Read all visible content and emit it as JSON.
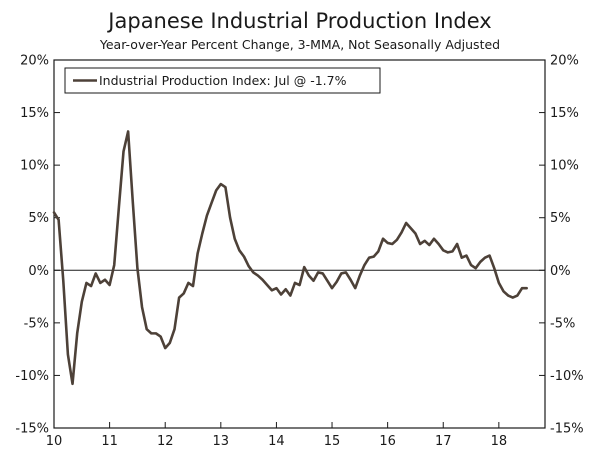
{
  "chart_data": {
    "type": "line",
    "title": "Japanese Industrial Production Index",
    "subtitle": "Year-over-Year Percent Change, 3-MMA, Not Seasonally Adjusted",
    "xlabel": "",
    "ylabel": "",
    "ylim": [
      -15,
      20
    ],
    "xlim": [
      2010.0,
      2018.83
    ],
    "yticks": [
      20,
      15,
      10,
      5,
      0,
      -5,
      -10,
      -15
    ],
    "ytick_labels": [
      "20%",
      "15%",
      "10%",
      "5%",
      "0%",
      "-5%",
      "-10%",
      "-15%"
    ],
    "xticks": [
      2010,
      2011,
      2012,
      2013,
      2014,
      2015,
      2016,
      2017,
      2018
    ],
    "xtick_labels": [
      "10",
      "11",
      "12",
      "13",
      "14",
      "15",
      "16",
      "17",
      "18"
    ],
    "grid": false,
    "zero_line": true,
    "legend": {
      "entries": [
        "Industrial Production Index: Jul @ -1.7%"
      ],
      "placement": "top-left"
    },
    "line_color": "#4d4138",
    "series": [
      {
        "name": "Industrial Production Index",
        "x": [
          2010.0,
          2010.083,
          2010.167,
          2010.25,
          2010.333,
          2010.417,
          2010.5,
          2010.583,
          2010.667,
          2010.75,
          2010.833,
          2010.917,
          2011.0,
          2011.083,
          2011.167,
          2011.25,
          2011.333,
          2011.417,
          2011.5,
          2011.583,
          2011.667,
          2011.75,
          2011.833,
          2011.917,
          2012.0,
          2012.083,
          2012.167,
          2012.25,
          2012.333,
          2012.417,
          2012.5,
          2012.583,
          2012.667,
          2012.75,
          2012.833,
          2012.917,
          2013.0,
          2013.083,
          2013.167,
          2013.25,
          2013.333,
          2013.417,
          2013.5,
          2013.583,
          2013.667,
          2013.75,
          2013.833,
          2013.917,
          2014.0,
          2014.083,
          2014.167,
          2014.25,
          2014.333,
          2014.417,
          2014.5,
          2014.583,
          2014.667,
          2014.75,
          2014.833,
          2014.917,
          2015.0,
          2015.083,
          2015.167,
          2015.25,
          2015.333,
          2015.417,
          2015.5,
          2015.583,
          2015.667,
          2015.75,
          2015.833,
          2015.917,
          2016.0,
          2016.083,
          2016.167,
          2016.25,
          2016.333,
          2016.417,
          2016.5,
          2016.583,
          2016.667,
          2016.75,
          2016.833,
          2016.917,
          2017.0,
          2017.083,
          2017.167,
          2017.25,
          2017.333,
          2017.417,
          2017.5,
          2017.583,
          2017.667,
          2017.75,
          2017.833,
          2017.917,
          2018.0,
          2018.083,
          2018.167,
          2018.25,
          2018.333,
          2018.417,
          2018.5
        ],
        "values": [
          5.5,
          4.8,
          -1.0,
          -8.0,
          -10.8,
          -6.0,
          -3.0,
          -1.2,
          -1.5,
          -0.3,
          -1.2,
          -0.9,
          -1.4,
          0.5,
          6.0,
          11.3,
          13.2,
          6.5,
          0.2,
          -3.5,
          -5.6,
          -6.0,
          -6.0,
          -6.3,
          -7.4,
          -6.9,
          -5.6,
          -2.6,
          -2.2,
          -1.2,
          -1.5,
          1.6,
          3.5,
          5.2,
          6.4,
          7.6,
          8.2,
          7.9,
          5.0,
          3.0,
          1.9,
          1.3,
          0.4,
          -0.2,
          -0.5,
          -0.9,
          -1.4,
          -1.9,
          -1.7,
          -2.3,
          -1.8,
          -2.4,
          -1.2,
          -1.4,
          0.3,
          -0.5,
          -1.0,
          -0.2,
          -0.3,
          -1.0,
          -1.7,
          -1.1,
          -0.3,
          -0.2,
          -0.9,
          -1.7,
          -0.5,
          0.5,
          1.2,
          1.3,
          1.8,
          3.0,
          2.6,
          2.5,
          2.9,
          3.6,
          4.5,
          4.0,
          3.5,
          2.5,
          2.8,
          2.4,
          3.0,
          2.5,
          1.9,
          1.7,
          1.8,
          2.5,
          1.2,
          1.4,
          0.5,
          0.2,
          0.8,
          1.2,
          1.4,
          0.2,
          -1.2,
          -2.0,
          -2.4,
          -2.6,
          -2.4,
          -1.7,
          -1.7
        ]
      }
    ]
  }
}
